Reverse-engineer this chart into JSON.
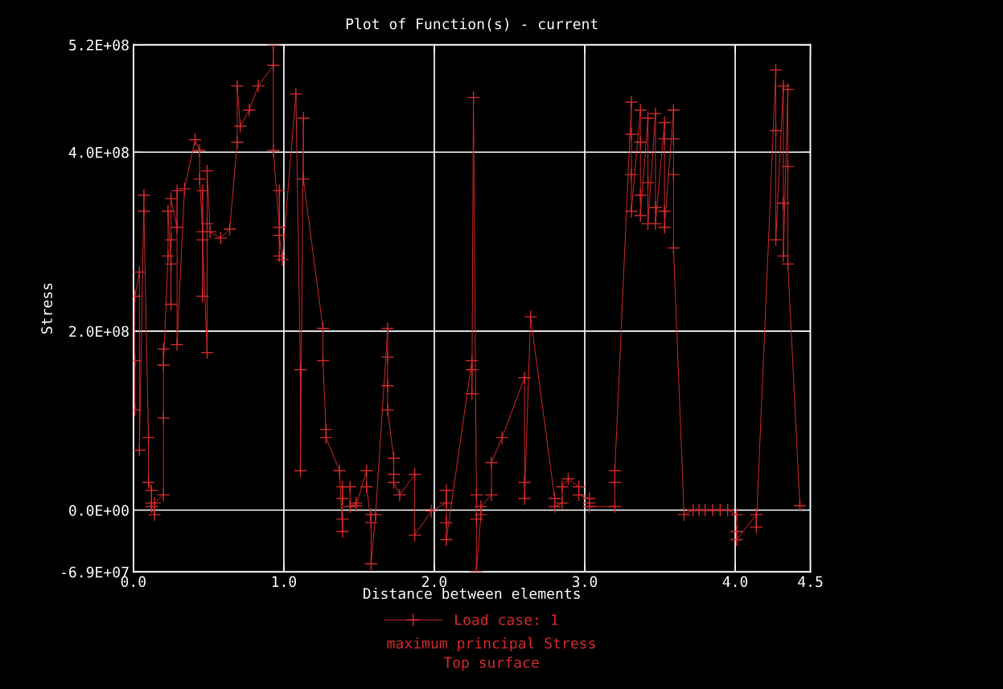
{
  "chart_data": {
    "type": "line",
    "title": "Plot of Function(s) - current",
    "xlabel": "Distance between elements",
    "ylabel": "Stress",
    "annotations": [
      "maximum principal Stress",
      "Top surface"
    ],
    "xlim": [
      0.0,
      4.5
    ],
    "xticks": [
      {
        "value": 0,
        "label": "0.0"
      },
      {
        "value": 1,
        "label": "1.0"
      },
      {
        "value": 2,
        "label": "2.0"
      },
      {
        "value": 3,
        "label": "3.0"
      },
      {
        "value": 4,
        "label": "4.0"
      },
      {
        "value": 4.5,
        "label": "4.5"
      }
    ],
    "ylim": [
      -69000000,
      520000000
    ],
    "yticks": [
      {
        "value": -69000000,
        "label": "-6.9E+07"
      },
      {
        "value": 0,
        "label": "0.0E+00"
      },
      {
        "value": 200000000,
        "label": "2.0E+08"
      },
      {
        "value": 400000000,
        "label": "4.0E+08"
      },
      {
        "value": 520000000,
        "label": "5.2E+08"
      }
    ],
    "grid": true,
    "legend": "bottom",
    "marker": "cross",
    "line_style": "solid",
    "series": [
      {
        "name": "Load case: 1",
        "color": "#d42a2a",
        "x": [
          0.01,
          0.01,
          0.01,
          0.04,
          0.04,
          0.07,
          0.07,
          0.1,
          0.1,
          0.12,
          0.12,
          0.12,
          0.14,
          0.14,
          0.2,
          0.2,
          0.2,
          0.2,
          0.23,
          0.23,
          0.25,
          0.25,
          0.25,
          0.25,
          0.29,
          0.29,
          0.29,
          0.34,
          0.41,
          0.44,
          0.44,
          0.46,
          0.46,
          0.46,
          0.46,
          0.49,
          0.49,
          0.49,
          0.51,
          0.58,
          0.64,
          0.69,
          0.69,
          0.71,
          0.77,
          0.83,
          0.93,
          0.93,
          0.93,
          0.97,
          0.97,
          0.97,
          0.97,
          0.99,
          1.08,
          1.11,
          1.11,
          1.13,
          1.13,
          1.26,
          1.26,
          1.28,
          1.28,
          1.37,
          1.39,
          1.39,
          1.39,
          1.39,
          1.44,
          1.44,
          1.48,
          1.48,
          1.55,
          1.55,
          1.58,
          1.58,
          1.58,
          1.61,
          1.69,
          1.69,
          1.69,
          1.69,
          1.73,
          1.73,
          1.73,
          1.77,
          1.87,
          1.87,
          1.98,
          2.08,
          2.08,
          2.08,
          2.08,
          2.25,
          2.25,
          2.25,
          2.26,
          2.28,
          2.28,
          2.28,
          2.31,
          2.31,
          2.38,
          2.38,
          2.45,
          2.6,
          2.6,
          2.6,
          2.64,
          2.8,
          2.8,
          2.85,
          2.85,
          2.89,
          2.96,
          2.96,
          3.03,
          3.03,
          3.03,
          3.2,
          3.2,
          3.2,
          3.31,
          3.31,
          3.31,
          3.31,
          3.37,
          3.37,
          3.37,
          3.37,
          3.42,
          3.42,
          3.42,
          3.47,
          3.47,
          3.47,
          3.53,
          3.53,
          3.53,
          3.53,
          3.59,
          3.59,
          3.59,
          3.59,
          3.66,
          3.72,
          3.76,
          3.8,
          3.85,
          3.9,
          3.95,
          4.01,
          4.01,
          4.01,
          4.14,
          4.14,
          4.27,
          4.27,
          4.27,
          4.32,
          4.32,
          4.32,
          4.35,
          4.35,
          4.35,
          4.43
        ],
        "values": [
          167000000.0,
          112000000.0,
          239000000.0,
          266000000.0,
          67000000.0,
          352000000.0,
          334000000.0,
          81000000.0,
          31000000.0,
          22000000.0,
          8000000.0,
          4000000.0,
          -5000000.0,
          8000000.0,
          17000000.0,
          103000000.0,
          180000000.0,
          162000000.0,
          284000000.0,
          334000000.0,
          275000000.0,
          230000000.0,
          302000000.0,
          348000000.0,
          316000000.0,
          357000000.0,
          185000000.0,
          359000000.0,
          414000000.0,
          402000000.0,
          370000000.0,
          311000000.0,
          357000000.0,
          239000000.0,
          302000000.0,
          176000000.0,
          320000000.0,
          379000000.0,
          311000000.0,
          304000000.0,
          314000000.0,
          411000000.0,
          474000000.0,
          429000000.0,
          447000000.0,
          474000000.0,
          497000000.0,
          520000000.0,
          402000000.0,
          316000000.0,
          284000000.0,
          357000000.0,
          307000000.0,
          280000000.0,
          465000000.0,
          157000000.0,
          44000000.0,
          438000000.0,
          370000000.0,
          203000000.0,
          167000000.0,
          90000000.0,
          81000000.0,
          44000000.0,
          -24000000.0,
          -10000000.0,
          13000000.0,
          26000000.0,
          26000000.0,
          4000000.0,
          8000000.0,
          5000000.0,
          44000000.0,
          26000000.0,
          -14000000.0,
          -5000000.0,
          -60000000.0,
          -5000000.0,
          203000000.0,
          171000000.0,
          139000000.0,
          112000000.0,
          58000000.0,
          40000000.0,
          31000000.0,
          17000000.0,
          40000000.0,
          -28000000.0,
          -1000000.0,
          8000000.0,
          22000000.0,
          -14000000.0,
          -33000000.0,
          167000000.0,
          157000000.0,
          130000000.0,
          461000000.0,
          17000000.0,
          -10000000.0,
          -69000000.0,
          -5000000.0,
          4000000.0,
          17000000.0,
          53000000.0,
          81000000.0,
          148000000.0,
          31000000.0,
          13000000.0,
          216000000.0,
          13000000.0,
          4000000.0,
          8000000.0,
          26000000.0,
          35000000.0,
          26000000.0,
          17000000.0,
          13000000.0,
          8000000.0,
          4000000.0,
          4000000.0,
          31000000.0,
          44000000.0,
          456000000.0,
          420000000.0,
          375000000.0,
          334000000.0,
          447000000.0,
          411000000.0,
          352000000.0,
          329000000.0,
          438000000.0,
          366000000.0,
          320000000.0,
          443000000.0,
          338000000.0,
          320000000.0,
          433000000.0,
          415000000.0,
          334000000.0,
          316000000.0,
          447000000.0,
          415000000.0,
          375000000.0,
          293000000.0,
          -5000000.0,
          0.0,
          0.0,
          0.0,
          0.0,
          0.0,
          0.0,
          -5000000.0,
          -24000000.0,
          -33000000.0,
          -5000000.0,
          -19000000.0,
          492000000.0,
          424000000.0,
          302000000.0,
          474000000.0,
          343000000.0,
          284000000.0,
          470000000.0,
          384000000.0,
          275000000.0,
          5000000.0
        ]
      }
    ]
  }
}
